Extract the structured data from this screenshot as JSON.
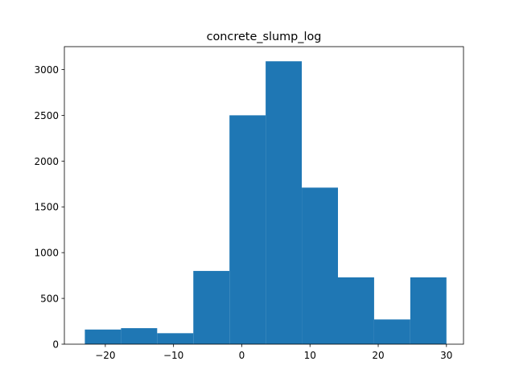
{
  "chart_data": {
    "type": "bar",
    "subtype": "histogram",
    "title": "concrete_slump_log",
    "xlabel": "",
    "ylabel": "",
    "bin_edges": [
      -23.0,
      -17.7,
      -12.4,
      -7.1,
      -1.8,
      3.5,
      8.8,
      14.1,
      19.4,
      24.7,
      30.0
    ],
    "values": [
      160,
      175,
      120,
      800,
      2500,
      3090,
      1710,
      730,
      270,
      730
    ],
    "xlim": [
      -26,
      32.5
    ],
    "ylim": [
      0,
      3250
    ],
    "xticks": [
      -20,
      -10,
      0,
      10,
      20,
      30
    ],
    "xtick_labels": [
      "−20",
      "−10",
      "0",
      "10",
      "20",
      "30"
    ],
    "yticks": [
      0,
      500,
      1000,
      1500,
      2000,
      2500,
      3000
    ],
    "ytick_labels": [
      "0",
      "500",
      "1000",
      "1500",
      "2000",
      "2500",
      "3000"
    ],
    "bar_color": "#1f77b4",
    "grid": false,
    "legend": "none"
  }
}
